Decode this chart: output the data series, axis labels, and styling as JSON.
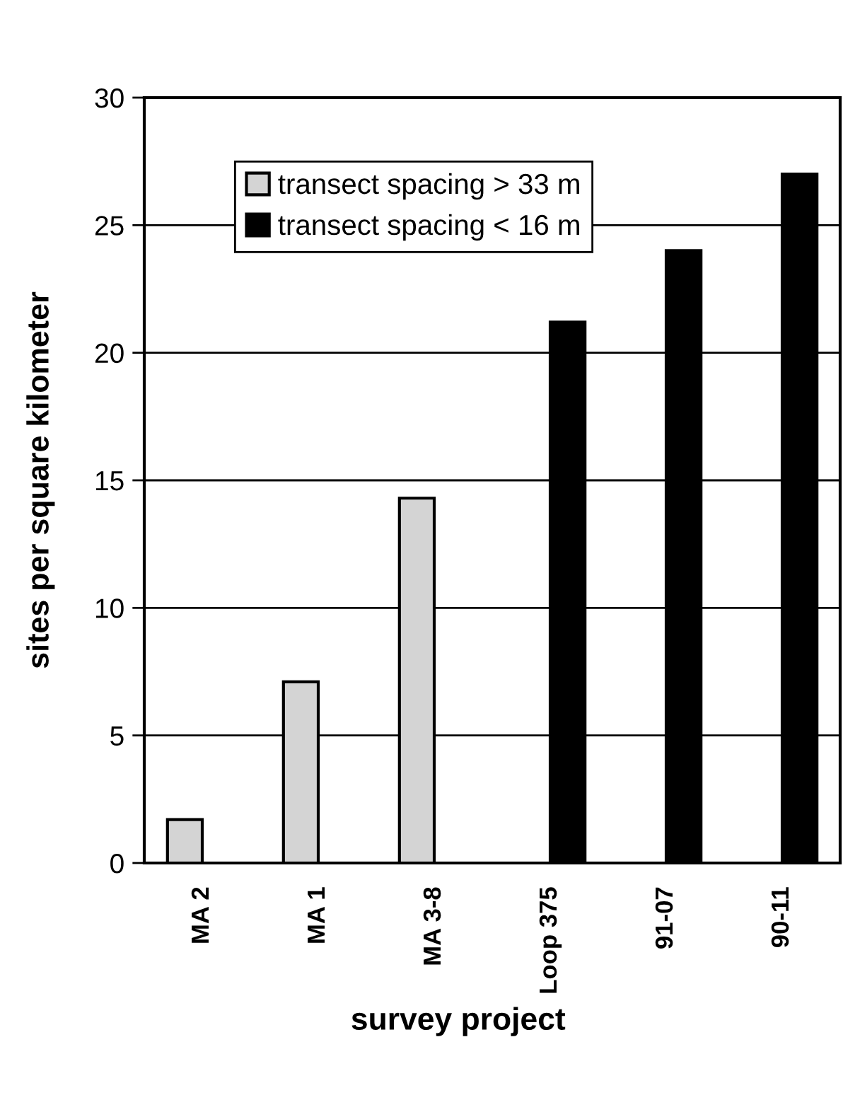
{
  "chart_data": {
    "type": "bar",
    "xlabel": "survey project",
    "ylabel": "sites per square kilometer",
    "categories": [
      "MA 2",
      "MA 1",
      "MA 3-8",
      "Loop 375",
      "91-07",
      "90-11"
    ],
    "series": [
      {
        "name": "transect spacing > 33 m",
        "color": "#d4d4d4",
        "values": [
          1.7,
          7.1,
          14.3,
          null,
          null,
          null
        ]
      },
      {
        "name": "transect spacing < 16 m",
        "color": "#000000",
        "values": [
          null,
          null,
          null,
          21.2,
          24.0,
          27.0
        ]
      }
    ],
    "ylim": [
      0,
      30
    ],
    "yticks": [
      0,
      5,
      10,
      15,
      20,
      25,
      30
    ],
    "grid": "y",
    "legend": "top left"
  }
}
